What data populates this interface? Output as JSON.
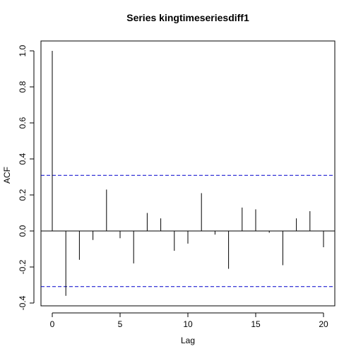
{
  "chart_data": {
    "type": "bar",
    "subtype": "acf-stem",
    "title": "Series  kingtimeseriesdiff1",
    "xlabel": "Lag",
    "ylabel": "ACF",
    "xlim": [
      0,
      20
    ],
    "ylim": [
      -0.4,
      1.0
    ],
    "x_ticks": [
      0,
      5,
      10,
      15,
      20
    ],
    "y_ticks": [
      -0.4,
      -0.2,
      0.0,
      0.2,
      0.4,
      0.6,
      0.8,
      1.0
    ],
    "x_tick_labels": [
      "0",
      "5",
      "10",
      "15",
      "20"
    ],
    "y_tick_labels": [
      "-0.4",
      "-0.2",
      "0.0",
      "0.2",
      "0.4",
      "0.6",
      "0.8",
      "1.0"
    ],
    "lags": [
      0,
      1,
      2,
      3,
      4,
      5,
      6,
      7,
      8,
      9,
      10,
      11,
      12,
      13,
      14,
      15,
      16,
      17,
      18,
      19,
      20
    ],
    "values": [
      1.0,
      -0.36,
      -0.16,
      -0.05,
      0.23,
      -0.04,
      -0.18,
      0.1,
      0.07,
      -0.11,
      -0.07,
      0.21,
      -0.02,
      -0.21,
      0.13,
      0.12,
      -0.01,
      -0.19,
      0.07,
      0.11,
      -0.09
    ],
    "confidence_bound": 0.309,
    "confidence_color": "#0000cc",
    "zero_line": true,
    "grid": false,
    "legend": "none"
  }
}
